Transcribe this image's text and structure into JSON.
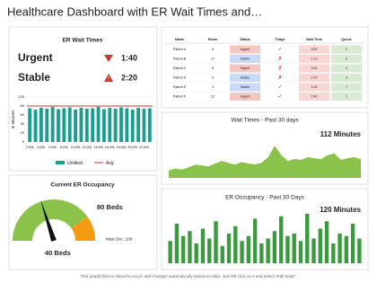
{
  "title": "Healthcare Dashboard with ER Wait Times and…",
  "wait_panel": {
    "title": "ER Wait Times",
    "stats": [
      {
        "label": "Urgent",
        "value": "1:40"
      },
      {
        "label": "Stable",
        "value": "2:20"
      }
    ],
    "chart": {
      "type": "bar",
      "y_label": "In Minutes",
      "categories": [
        "2:00k",
        null,
        "4:00k",
        null,
        "6:00k",
        null,
        "8:00k",
        null,
        "10:00k",
        null,
        "12:00k",
        null,
        "14:00k",
        null,
        "16:00k",
        null,
        "18:00k",
        null,
        "20:00k",
        null,
        "22:00k",
        null
      ],
      "series": [
        {
          "name": "Untitled",
          "color": "#1a9e8f",
          "values": [
            75,
            72,
            76,
            74,
            78,
            73,
            75,
            77,
            72,
            76,
            74,
            75,
            78,
            73,
            76,
            74,
            77,
            75,
            72,
            76,
            74,
            75
          ]
        }
      ],
      "avg": {
        "name": "Avg",
        "color": "#c0392b",
        "value": 80
      },
      "ylim": [
        0,
        100
      ],
      "yticks": [
        0,
        20,
        40,
        60,
        80,
        100
      ]
    }
  },
  "gauge": {
    "title": "Current ER Occupancy",
    "max": 100,
    "max_label": "Max Occ. 100",
    "value": 40,
    "value_label": "40 Beds",
    "threshold": 80,
    "threshold_label": "80 Beds",
    "colors": [
      "#8bc34a",
      "#f39c12"
    ]
  },
  "table": {
    "columns": [
      "Name",
      "Room",
      "Status",
      "Triage",
      "Wait Time",
      "Queue"
    ],
    "rows": [
      [
        "Patient A",
        "6",
        "Urgent",
        "✓",
        "3:00",
        "2"
      ],
      [
        "Patient B",
        "17",
        "Stable",
        "✗",
        "1:10",
        "5"
      ],
      [
        "Patient C",
        "8",
        "Urgent",
        "✗",
        "3:00",
        "4"
      ],
      [
        "Patient D",
        "9",
        "Stable",
        "✗",
        "2:10",
        "3"
      ],
      [
        "Patient E",
        "4",
        "Stable",
        "✓",
        "1:00",
        "7"
      ],
      [
        "Patient F",
        "12",
        "Urgent",
        "✓",
        "2:40",
        "1"
      ]
    ],
    "status_style": {
      "Urgent": "#f4c7c3",
      "Stable": "#c9daf8"
    },
    "triage_style": {
      "✓": "#2e7d32",
      "✗": "#c62828"
    }
  },
  "wait_trend": {
    "type": "area",
    "title": "Wait Times - Past 30 days",
    "headline": "112 Minutes",
    "color": "#8bc34a",
    "ylim": [
      0,
      100
    ],
    "values": [
      20,
      25,
      22,
      28,
      35,
      33,
      30,
      38,
      45,
      40,
      35,
      42,
      38,
      36,
      40,
      55,
      85,
      60,
      45,
      50,
      48,
      55,
      52,
      50,
      60,
      65,
      48,
      52,
      55,
      50
    ]
  },
  "occupancy_trend": {
    "type": "bar",
    "title": "ER Occupancy - Past 30 Days",
    "headline": "120 Minutes",
    "color": "#3a9a3e",
    "ylim": [
      0,
      100
    ],
    "values": [
      45,
      80,
      55,
      65,
      40,
      70,
      50,
      85,
      35,
      60,
      75,
      45,
      55,
      90,
      40,
      50,
      65,
      95,
      55,
      60,
      45,
      100,
      50,
      70,
      85,
      40,
      60,
      55,
      80,
      50
    ]
  },
  "footer": "This graph/chart is linked to excel, and changes automatically based on data. Just left click on it and select “Edit Data”."
}
